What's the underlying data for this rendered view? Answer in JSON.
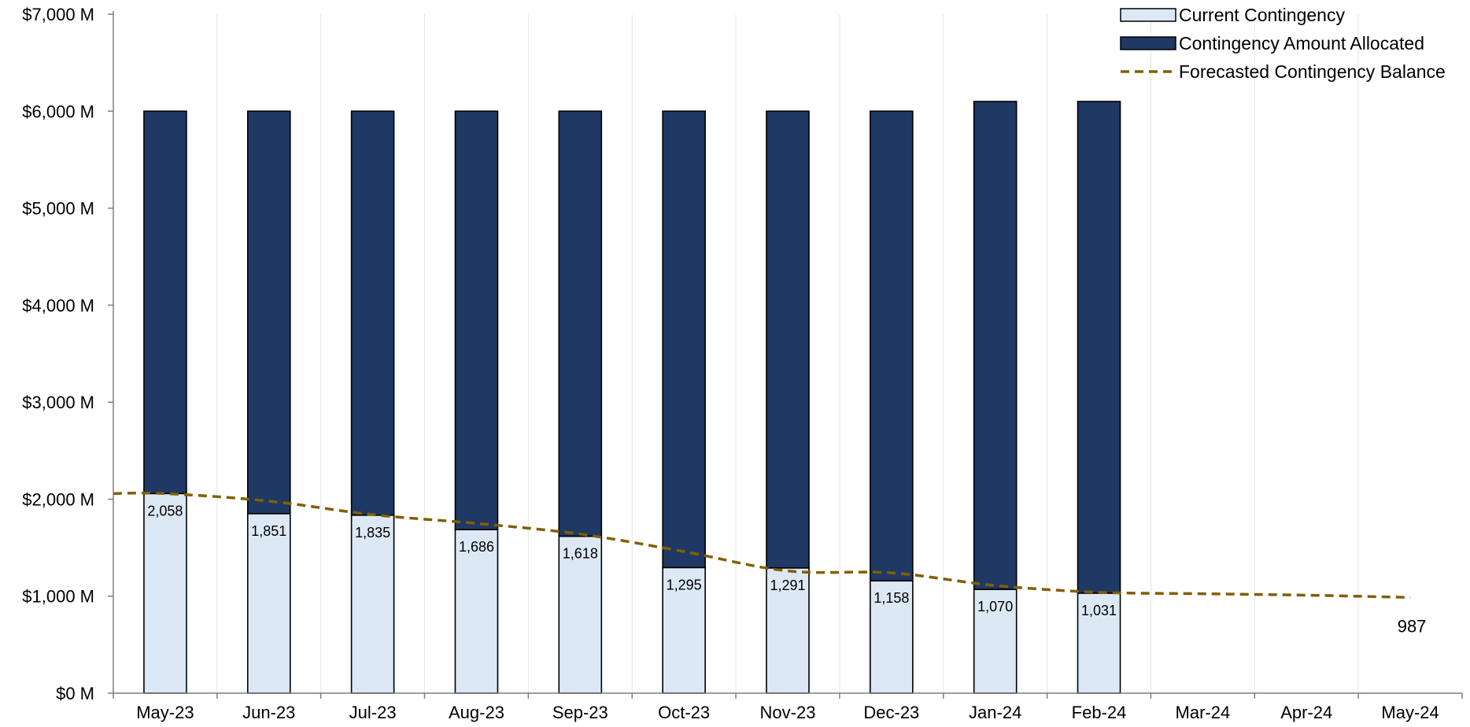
{
  "chart_data": {
    "type": "bar",
    "stacked": true,
    "categories": [
      "May-23",
      "Jun-23",
      "Jul-23",
      "Aug-23",
      "Sep-23",
      "Oct-23",
      "Nov-23",
      "Dec-23",
      "Jan-24",
      "Feb-24",
      "Mar-24",
      "Apr-24",
      "May-24"
    ],
    "series": [
      {
        "name": "Current Contingency",
        "kind": "bar",
        "color": "#dde8f5",
        "values": [
          2058,
          1851,
          1835,
          1686,
          1618,
          1295,
          1291,
          1158,
          1070,
          1031,
          null,
          null,
          null
        ],
        "labels": [
          "2,058",
          "1,851",
          "1,835",
          "1,686",
          "1,618",
          "1,295",
          "1,291",
          "1,158",
          "1,070",
          "1,031",
          "",
          "",
          ""
        ]
      },
      {
        "name": "Contingency Amount Allocated",
        "kind": "bar",
        "color": "#1f3864",
        "values": [
          3942,
          4149,
          4165,
          4314,
          4382,
          4705,
          4709,
          4842,
          5030,
          5069,
          null,
          null,
          null
        ]
      },
      {
        "name": "Forecasted Contingency Balance",
        "kind": "line",
        "style": "dashed",
        "color": "#806000",
        "x": [
          -0.5,
          0,
          1,
          2,
          3,
          4,
          5,
          6,
          7,
          8,
          9,
          10,
          11,
          12
        ],
        "values": [
          2058,
          2058,
          1980,
          1840,
          1750,
          1640,
          1460,
          1260,
          1240,
          1110,
          1040,
          1025,
          1010,
          987
        ],
        "end_label": "987"
      }
    ],
    "y_ticks": [
      "$0 M",
      "$1,000 M",
      "$2,000 M",
      "$3,000 M",
      "$4,000 M",
      "$5,000 M",
      "$6,000 M",
      "$7,000 M"
    ],
    "ylim": [
      0,
      7000
    ],
    "ytick_step": 1000,
    "grid": "vertical category dividers",
    "legend": "top-right",
    "title": "",
    "xlabel": "",
    "ylabel": ""
  }
}
